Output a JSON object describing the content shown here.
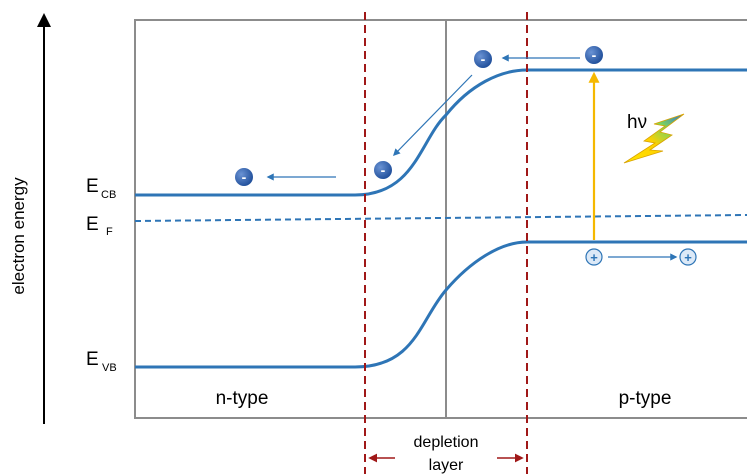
{
  "axis": {
    "label": "electron energy"
  },
  "levels": {
    "conduction_band": {
      "main": "E",
      "sub": "CB"
    },
    "fermi": {
      "main": "E",
      "sub": "F"
    },
    "valence_band": {
      "main": "E",
      "sub": "VB"
    }
  },
  "regions": {
    "left": "n-type",
    "right": "p-type"
  },
  "depletion": {
    "line1": "depletion",
    "line2": "layer"
  },
  "photon": {
    "label": "hν"
  },
  "charges": {
    "electron_sign": "-",
    "hole_sign": "+"
  },
  "colors": {
    "band": "#2e75b6",
    "fermi": "#2e75b6",
    "depletion_boundary": "#a01818",
    "photon_arrow": "#f5b800",
    "electron_fill": "#2f5597",
    "hole_fill": "#dce9f7",
    "frame": "#8c8c8c"
  },
  "icons": {
    "photon": "lightning-bolt-icon"
  }
}
